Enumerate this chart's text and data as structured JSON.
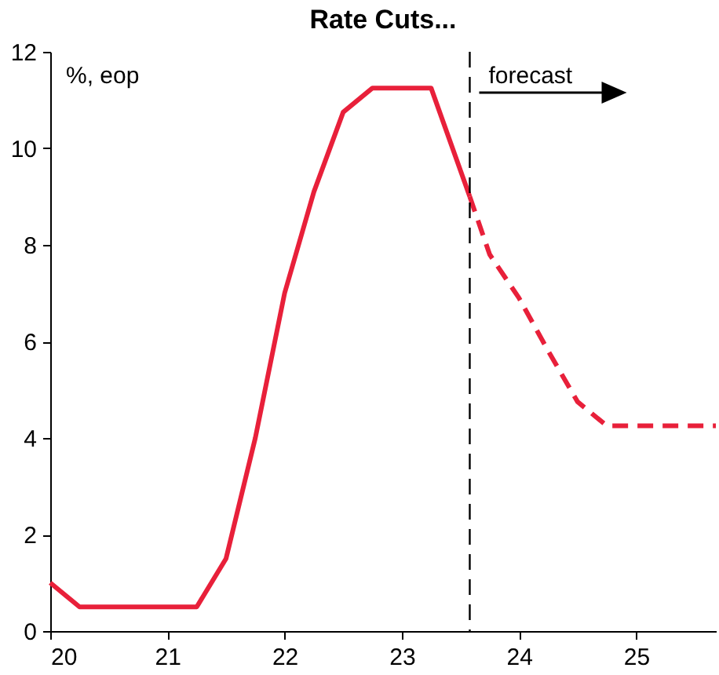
{
  "chart_data": {
    "type": "line",
    "title": "Rate Cuts...",
    "annotations": [
      "%, eop"
    ],
    "xlim": [
      20,
      25.68
    ],
    "xticks": [
      20,
      21,
      22,
      23,
      24,
      25
    ],
    "ylim": [
      0,
      12
    ],
    "yticks": [
      0,
      2,
      4,
      6,
      8,
      10,
      12
    ],
    "grid": false,
    "marker": "none",
    "series": [
      {
        "color": "#e8203a",
        "line_style": "solid",
        "x": [
          20,
          20.25,
          20.5,
          20.75,
          21,
          21.25,
          21.5,
          21.75,
          22,
          22.25,
          22.5,
          22.75,
          23,
          23.25,
          23.58
        ],
        "values": [
          1.0,
          0.5,
          0.5,
          0.5,
          0.5,
          0.5,
          1.5,
          4.0,
          7.0,
          9.1,
          10.75,
          11.25,
          11.25,
          11.25,
          9.0
        ]
      },
      {
        "color": "#e8203a",
        "line_style": "dashed",
        "x": [
          23.58,
          23.75,
          24,
          24.25,
          24.5,
          24.75,
          25,
          25.25,
          25.5,
          25.68
        ],
        "values": [
          9.0,
          7.8,
          6.9,
          5.8,
          4.75,
          4.25,
          4.25,
          4.25,
          4.25,
          4.25
        ]
      }
    ],
    "ref_lines": [
      {
        "axis": "x",
        "value": 23.58,
        "label": "forecast",
        "color": "#000000",
        "line_style": "dashed"
      }
    ]
  }
}
